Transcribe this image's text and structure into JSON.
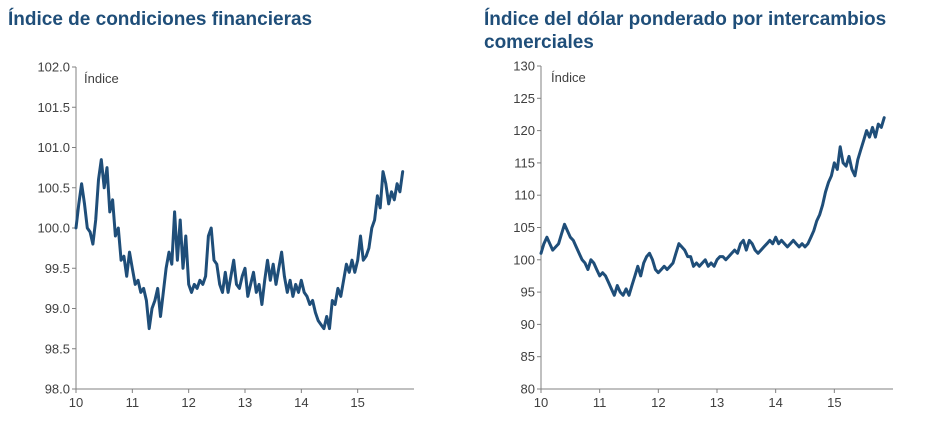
{
  "colors": {
    "title": "#1f4e79",
    "series": "#1f4e79",
    "axis": "#808080",
    "text": "#404040"
  },
  "chart_data": [
    {
      "type": "line",
      "title": "Índice de condiciones financieras",
      "unit_label": "Índice",
      "xlabel": "",
      "ylabel": "",
      "xlim": [
        10,
        16
      ],
      "ylim": [
        98.0,
        102.0
      ],
      "xticks": [
        10,
        11,
        12,
        13,
        14,
        15
      ],
      "xtick_labels": [
        "10",
        "11",
        "12",
        "13",
        "14",
        "15"
      ],
      "yticks": [
        98.0,
        98.5,
        99.0,
        99.5,
        100.0,
        100.5,
        101.0,
        101.5,
        102.0
      ],
      "ytick_labels": [
        "98.0",
        "98.5",
        "99.0",
        "99.5",
        "100.0",
        "100.5",
        "101.0",
        "101.5",
        "102.0"
      ],
      "grid": false,
      "series": [
        {
          "values": [
            [
              10.0,
              100.0
            ],
            [
              10.05,
              100.3
            ],
            [
              10.1,
              100.55
            ],
            [
              10.15,
              100.3
            ],
            [
              10.2,
              100.0
            ],
            [
              10.25,
              99.95
            ],
            [
              10.3,
              99.8
            ],
            [
              10.35,
              100.1
            ],
            [
              10.4,
              100.6
            ],
            [
              10.45,
              100.85
            ],
            [
              10.5,
              100.5
            ],
            [
              10.55,
              100.75
            ],
            [
              10.6,
              100.2
            ],
            [
              10.65,
              100.35
            ],
            [
              10.7,
              99.9
            ],
            [
              10.75,
              100.0
            ],
            [
              10.8,
              99.6
            ],
            [
              10.85,
              99.65
            ],
            [
              10.9,
              99.4
            ],
            [
              10.95,
              99.7
            ],
            [
              11.0,
              99.5
            ],
            [
              11.05,
              99.3
            ],
            [
              11.1,
              99.35
            ],
            [
              11.15,
              99.2
            ],
            [
              11.2,
              99.25
            ],
            [
              11.25,
              99.1
            ],
            [
              11.3,
              98.75
            ],
            [
              11.35,
              99.0
            ],
            [
              11.4,
              99.1
            ],
            [
              11.45,
              99.25
            ],
            [
              11.5,
              98.9
            ],
            [
              11.55,
              99.2
            ],
            [
              11.6,
              99.5
            ],
            [
              11.65,
              99.7
            ],
            [
              11.7,
              99.55
            ],
            [
              11.75,
              100.2
            ],
            [
              11.8,
              99.6
            ],
            [
              11.85,
              100.1
            ],
            [
              11.9,
              99.5
            ],
            [
              11.95,
              99.9
            ],
            [
              12.0,
              99.3
            ],
            [
              12.05,
              99.2
            ],
            [
              12.1,
              99.3
            ],
            [
              12.15,
              99.25
            ],
            [
              12.2,
              99.35
            ],
            [
              12.25,
              99.3
            ],
            [
              12.3,
              99.4
            ],
            [
              12.35,
              99.9
            ],
            [
              12.4,
              100.0
            ],
            [
              12.45,
              99.6
            ],
            [
              12.5,
              99.55
            ],
            [
              12.55,
              99.3
            ],
            [
              12.6,
              99.2
            ],
            [
              12.65,
              99.45
            ],
            [
              12.7,
              99.2
            ],
            [
              12.75,
              99.4
            ],
            [
              12.8,
              99.6
            ],
            [
              12.85,
              99.3
            ],
            [
              12.9,
              99.25
            ],
            [
              12.95,
              99.4
            ],
            [
              13.0,
              99.5
            ],
            [
              13.05,
              99.15
            ],
            [
              13.1,
              99.3
            ],
            [
              13.15,
              99.45
            ],
            [
              13.2,
              99.2
            ],
            [
              13.25,
              99.3
            ],
            [
              13.3,
              99.05
            ],
            [
              13.35,
              99.35
            ],
            [
              13.4,
              99.6
            ],
            [
              13.45,
              99.35
            ],
            [
              13.5,
              99.55
            ],
            [
              13.55,
              99.3
            ],
            [
              13.6,
              99.5
            ],
            [
              13.65,
              99.7
            ],
            [
              13.7,
              99.4
            ],
            [
              13.75,
              99.2
            ],
            [
              13.8,
              99.35
            ],
            [
              13.85,
              99.15
            ],
            [
              13.9,
              99.3
            ],
            [
              13.95,
              99.2
            ],
            [
              14.0,
              99.35
            ],
            [
              14.05,
              99.2
            ],
            [
              14.1,
              99.15
            ],
            [
              14.15,
              99.05
            ],
            [
              14.2,
              99.1
            ],
            [
              14.25,
              98.95
            ],
            [
              14.3,
              98.85
            ],
            [
              14.35,
              98.8
            ],
            [
              14.4,
              98.75
            ],
            [
              14.45,
              98.9
            ],
            [
              14.5,
              98.75
            ],
            [
              14.55,
              99.1
            ],
            [
              14.6,
              99.05
            ],
            [
              14.65,
              99.25
            ],
            [
              14.7,
              99.15
            ],
            [
              14.75,
              99.35
            ],
            [
              14.8,
              99.55
            ],
            [
              14.85,
              99.45
            ],
            [
              14.9,
              99.6
            ],
            [
              14.95,
              99.45
            ],
            [
              15.0,
              99.6
            ],
            [
              15.05,
              99.9
            ],
            [
              15.1,
              99.6
            ],
            [
              15.15,
              99.65
            ],
            [
              15.2,
              99.75
            ],
            [
              15.25,
              100.0
            ],
            [
              15.3,
              100.1
            ],
            [
              15.35,
              100.4
            ],
            [
              15.4,
              100.25
            ],
            [
              15.45,
              100.7
            ],
            [
              15.5,
              100.55
            ],
            [
              15.55,
              100.3
            ],
            [
              15.6,
              100.45
            ],
            [
              15.65,
              100.35
            ],
            [
              15.7,
              100.55
            ],
            [
              15.75,
              100.45
            ],
            [
              15.8,
              100.7
            ]
          ]
        }
      ]
    },
    {
      "type": "line",
      "title": "Índice del dólar ponderado por intercambios comerciales",
      "unit_label": "Índice",
      "xlabel": "",
      "ylabel": "",
      "xlim": [
        10,
        16
      ],
      "ylim": [
        80,
        130
      ],
      "xticks": [
        10,
        11,
        12,
        13,
        14,
        15
      ],
      "xtick_labels": [
        "10",
        "11",
        "12",
        "13",
        "14",
        "15"
      ],
      "yticks": [
        80,
        85,
        90,
        95,
        100,
        105,
        110,
        115,
        120,
        125,
        130
      ],
      "ytick_labels": [
        "80",
        "85",
        "90",
        "95",
        "100",
        "105",
        "110",
        "115",
        "120",
        "125",
        "130"
      ],
      "grid": false,
      "series": [
        {
          "values": [
            [
              10.0,
              101.0
            ],
            [
              10.05,
              102.5
            ],
            [
              10.1,
              103.5
            ],
            [
              10.15,
              102.5
            ],
            [
              10.2,
              101.5
            ],
            [
              10.25,
              102.0
            ],
            [
              10.3,
              102.5
            ],
            [
              10.35,
              104.0
            ],
            [
              10.4,
              105.5
            ],
            [
              10.45,
              104.5
            ],
            [
              10.5,
              103.5
            ],
            [
              10.55,
              103.0
            ],
            [
              10.6,
              102.0
            ],
            [
              10.65,
              101.0
            ],
            [
              10.7,
              100.0
            ],
            [
              10.75,
              99.5
            ],
            [
              10.8,
              98.5
            ],
            [
              10.85,
              100.0
            ],
            [
              10.9,
              99.5
            ],
            [
              10.95,
              98.5
            ],
            [
              11.0,
              97.5
            ],
            [
              11.05,
              98.0
            ],
            [
              11.1,
              97.5
            ],
            [
              11.15,
              96.5
            ],
            [
              11.2,
              95.5
            ],
            [
              11.25,
              94.5
            ],
            [
              11.3,
              96.0
            ],
            [
              11.35,
              95.0
            ],
            [
              11.4,
              94.5
            ],
            [
              11.45,
              95.5
            ],
            [
              11.5,
              94.5
            ],
            [
              11.55,
              96.0
            ],
            [
              11.6,
              97.5
            ],
            [
              11.65,
              99.0
            ],
            [
              11.7,
              97.5
            ],
            [
              11.75,
              99.5
            ],
            [
              11.8,
              100.5
            ],
            [
              11.85,
              101.0
            ],
            [
              11.9,
              100.0
            ],
            [
              11.95,
              98.5
            ],
            [
              12.0,
              98.0
            ],
            [
              12.05,
              98.5
            ],
            [
              12.1,
              99.0
            ],
            [
              12.15,
              98.5
            ],
            [
              12.2,
              99.0
            ],
            [
              12.25,
              99.5
            ],
            [
              12.3,
              101.0
            ],
            [
              12.35,
              102.5
            ],
            [
              12.4,
              102.0
            ],
            [
              12.45,
              101.5
            ],
            [
              12.5,
              100.5
            ],
            [
              12.55,
              100.5
            ],
            [
              12.6,
              99.0
            ],
            [
              12.65,
              99.5
            ],
            [
              12.7,
              99.0
            ],
            [
              12.75,
              99.5
            ],
            [
              12.8,
              100.0
            ],
            [
              12.85,
              99.0
            ],
            [
              12.9,
              99.5
            ],
            [
              12.95,
              99.0
            ],
            [
              13.0,
              100.0
            ],
            [
              13.05,
              100.5
            ],
            [
              13.1,
              100.5
            ],
            [
              13.15,
              100.0
            ],
            [
              13.2,
              100.5
            ],
            [
              13.25,
              101.0
            ],
            [
              13.3,
              101.5
            ],
            [
              13.35,
              101.0
            ],
            [
              13.4,
              102.5
            ],
            [
              13.45,
              103.0
            ],
            [
              13.5,
              101.5
            ],
            [
              13.55,
              103.0
            ],
            [
              13.6,
              102.5
            ],
            [
              13.65,
              101.5
            ],
            [
              13.7,
              101.0
            ],
            [
              13.75,
              101.5
            ],
            [
              13.8,
              102.0
            ],
            [
              13.85,
              102.5
            ],
            [
              13.9,
              103.0
            ],
            [
              13.95,
              102.5
            ],
            [
              14.0,
              103.5
            ],
            [
              14.05,
              102.5
            ],
            [
              14.1,
              103.0
            ],
            [
              14.15,
              102.5
            ],
            [
              14.2,
              102.0
            ],
            [
              14.25,
              102.5
            ],
            [
              14.3,
              103.0
            ],
            [
              14.35,
              102.5
            ],
            [
              14.4,
              102.0
            ],
            [
              14.45,
              102.5
            ],
            [
              14.5,
              102.0
            ],
            [
              14.55,
              102.5
            ],
            [
              14.6,
              103.5
            ],
            [
              14.65,
              104.5
            ],
            [
              14.7,
              106.0
            ],
            [
              14.75,
              107.0
            ],
            [
              14.8,
              108.5
            ],
            [
              14.85,
              110.5
            ],
            [
              14.9,
              112.0
            ],
            [
              14.95,
              113.0
            ],
            [
              15.0,
              115.0
            ],
            [
              15.05,
              114.0
            ],
            [
              15.1,
              117.5
            ],
            [
              15.15,
              115.0
            ],
            [
              15.2,
              114.5
            ],
            [
              15.25,
              116.0
            ],
            [
              15.3,
              114.0
            ],
            [
              15.35,
              113.0
            ],
            [
              15.4,
              115.5
            ],
            [
              15.45,
              117.0
            ],
            [
              15.5,
              118.5
            ],
            [
              15.55,
              120.0
            ],
            [
              15.6,
              119.0
            ],
            [
              15.65,
              120.5
            ],
            [
              15.7,
              119.0
            ],
            [
              15.75,
              121.0
            ],
            [
              15.8,
              120.5
            ],
            [
              15.85,
              122.0
            ]
          ]
        }
      ]
    }
  ]
}
